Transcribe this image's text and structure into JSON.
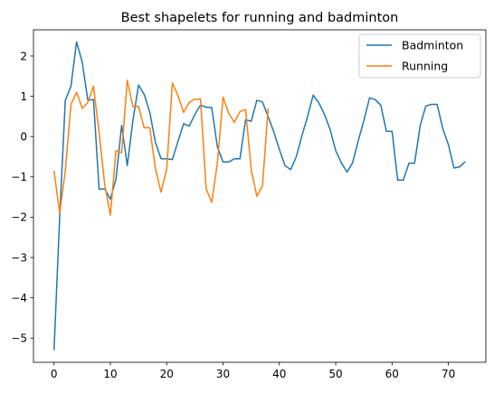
{
  "chart_data": {
    "type": "line",
    "title": "Best shapelets for running and badminton",
    "xlabel": "",
    "ylabel": "",
    "xlim": [
      -3.65,
      76.65
    ],
    "ylim": [
      -5.6,
      2.65
    ],
    "x_ticks": [
      0,
      10,
      20,
      30,
      40,
      50,
      60,
      70
    ],
    "y_ticks": [
      -5,
      -4,
      -3,
      -2,
      -1,
      0,
      1,
      2
    ],
    "grid": false,
    "legend_position": "top-right",
    "series": [
      {
        "name": "Badminton",
        "color": "#1f77b4",
        "x": [
          0,
          1,
          2,
          3,
          4,
          5,
          6,
          7,
          8,
          9,
          10,
          11,
          12,
          13,
          14,
          15,
          16,
          17,
          18,
          19,
          20,
          21,
          22,
          23,
          24,
          25,
          26,
          27,
          28,
          29,
          30,
          31,
          32,
          33,
          34,
          35,
          36,
          37,
          38,
          39,
          40,
          41,
          42,
          43,
          44,
          45,
          46,
          47,
          48,
          49,
          50,
          51,
          52,
          53,
          54,
          55,
          56,
          57,
          58,
          59,
          60,
          61,
          62,
          63,
          64,
          65,
          66,
          67,
          68,
          69,
          70,
          71,
          72,
          73
        ],
        "values": [
          -5.3,
          -2.0,
          0.9,
          1.25,
          2.35,
          1.85,
          0.9,
          0.92,
          -1.3,
          -1.3,
          -1.55,
          -1.05,
          0.28,
          -0.72,
          0.4,
          1.28,
          1.05,
          0.6,
          -0.15,
          -0.55,
          -0.55,
          -0.57,
          -0.12,
          0.32,
          0.26,
          0.55,
          0.78,
          0.73,
          0.72,
          -0.26,
          -0.63,
          -0.63,
          -0.55,
          -0.55,
          0.42,
          0.38,
          0.9,
          0.86,
          0.5,
          0.12,
          -0.32,
          -0.72,
          -0.82,
          -0.5,
          0.02,
          0.5,
          1.03,
          0.84,
          0.55,
          0.18,
          -0.35,
          -0.65,
          -0.88,
          -0.65,
          -0.1,
          0.4,
          0.96,
          0.92,
          0.78,
          0.13,
          0.13,
          -1.08,
          -1.08,
          -0.66,
          -0.66,
          0.28,
          0.76,
          0.8,
          0.8,
          0.2,
          -0.2,
          -0.78,
          -0.75,
          -0.62
        ]
      },
      {
        "name": "Running",
        "color": "#ff7f0e",
        "x": [
          0,
          1,
          2,
          3,
          4,
          5,
          6,
          7,
          8,
          9,
          10,
          11,
          12,
          13,
          14,
          15,
          16,
          17,
          18,
          19,
          20,
          21,
          22,
          23,
          24,
          25,
          26,
          27,
          28,
          29,
          30,
          31,
          32,
          33,
          34,
          35,
          36,
          37,
          38
        ],
        "values": [
          -0.85,
          -1.9,
          -0.85,
          0.8,
          1.1,
          0.7,
          0.85,
          1.25,
          0.1,
          -1.2,
          -1.95,
          -0.35,
          -0.4,
          1.4,
          0.75,
          0.75,
          0.22,
          0.22,
          -0.8,
          -1.38,
          -0.8,
          1.33,
          1.02,
          0.6,
          0.85,
          0.93,
          0.93,
          -1.3,
          -1.63,
          -0.65,
          0.98,
          0.58,
          0.35,
          0.62,
          0.67,
          -0.82,
          -1.48,
          -1.22,
          0.7
        ]
      }
    ]
  }
}
